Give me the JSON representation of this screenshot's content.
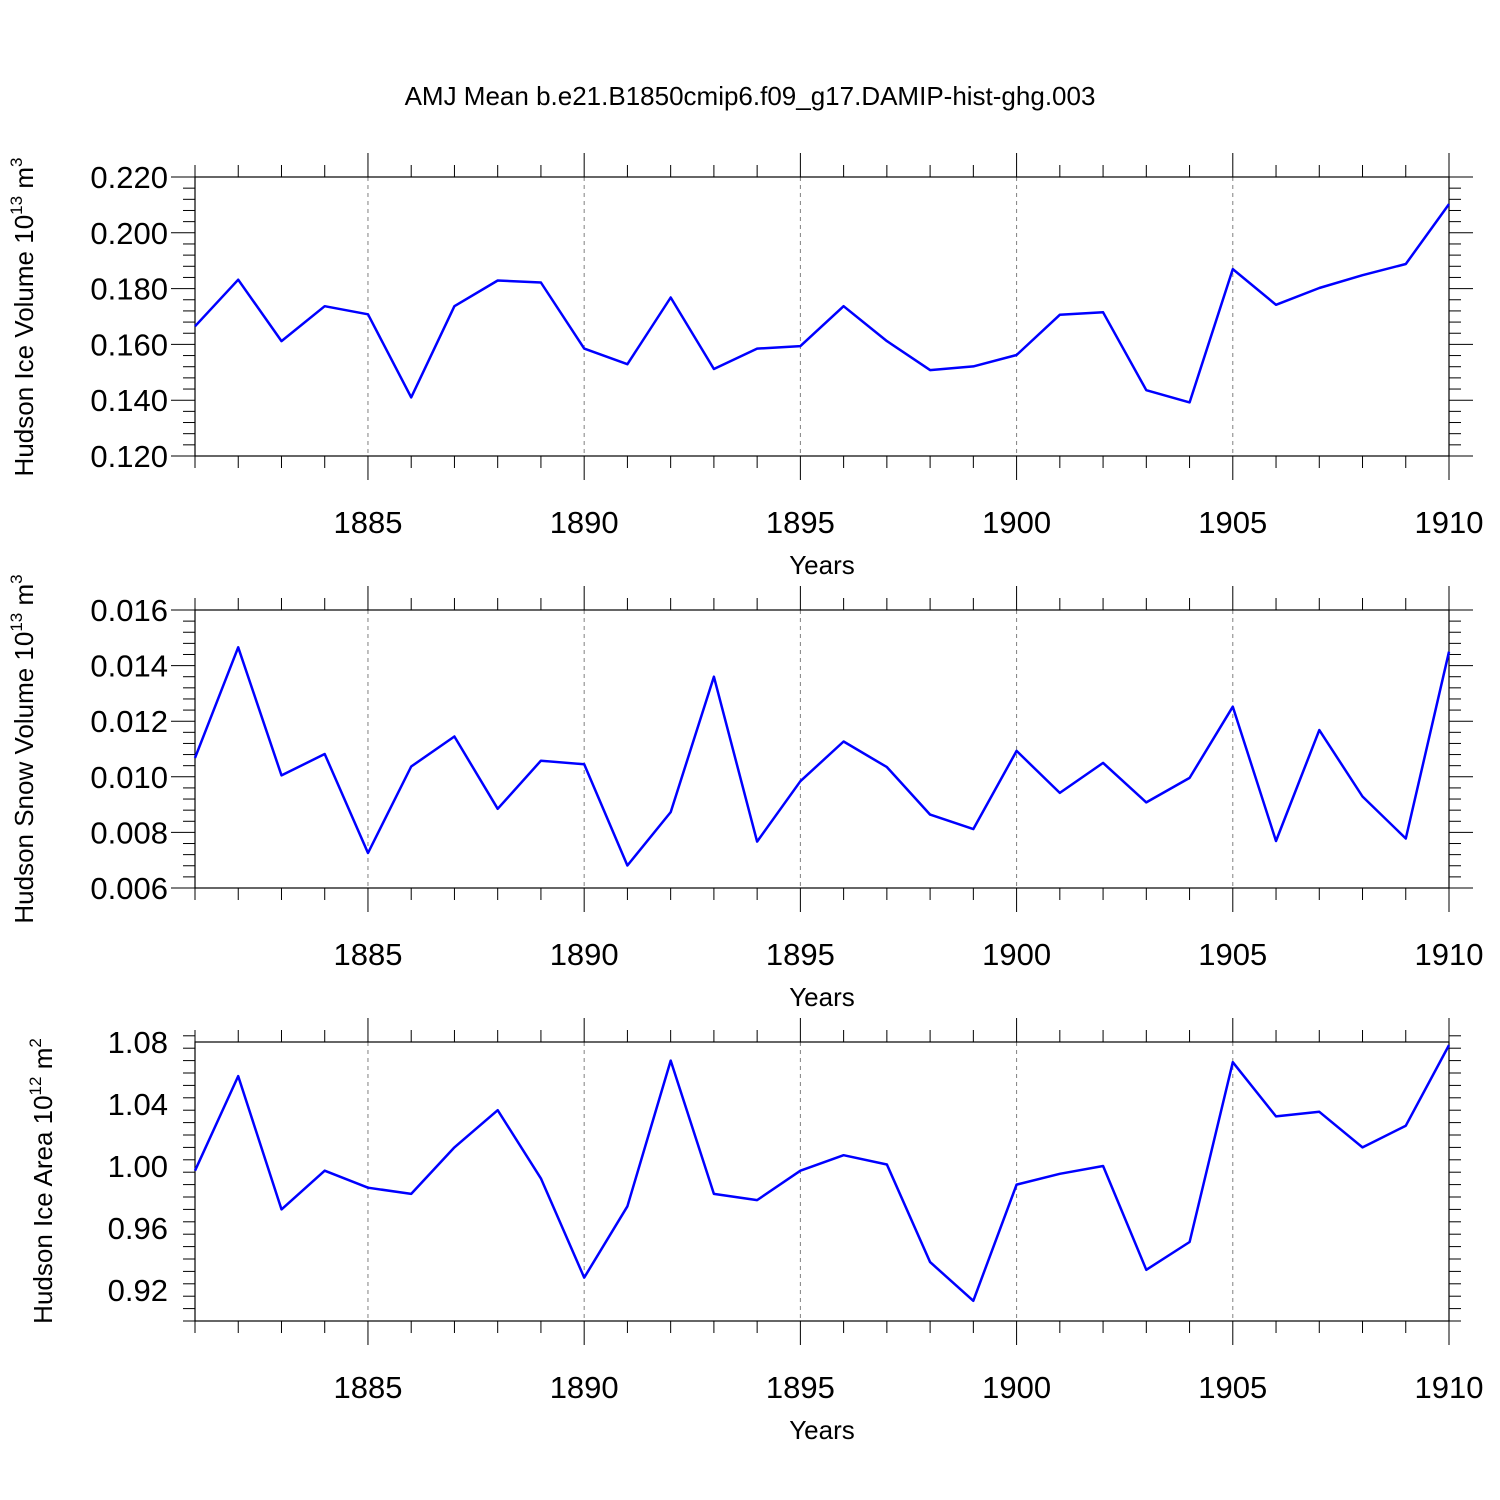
{
  "title": "AMJ Mean b.e21.B1850cmip6.f09_g17.DAMIP-hist-ghg.003",
  "chart_data": [
    {
      "type": "line",
      "ylabel": "Hudson Ice Volume",
      "yunit_base": "10",
      "yunit_exp": "13",
      "yunit_rest": " m",
      "yunit_sup": "3",
      "xlabel": "Years",
      "xlim": [
        1881,
        1910
      ],
      "ylim": [
        0.12,
        0.22
      ],
      "xticks": [
        "1885",
        "1890",
        "1895",
        "1900",
        "1905",
        "1910"
      ],
      "yticks": [
        "0.120",
        "0.140",
        "0.160",
        "0.180",
        "0.200",
        "0.220"
      ],
      "x": [
        1881,
        1882,
        1883,
        1884,
        1885,
        1886,
        1887,
        1888,
        1889,
        1890,
        1891,
        1892,
        1893,
        1894,
        1895,
        1896,
        1897,
        1898,
        1899,
        1900,
        1901,
        1902,
        1903,
        1904,
        1905,
        1906,
        1907,
        1908,
        1909,
        1910
      ],
      "series": [
        {
          "values": [
            0.1665,
            0.1832,
            0.1612,
            0.1737,
            0.1708,
            0.141,
            0.1737,
            0.1829,
            0.1822,
            0.1585,
            0.1529,
            0.1768,
            0.1512,
            0.1585,
            0.1594,
            0.1737,
            0.1612,
            0.1508,
            0.1521,
            0.1562,
            0.1706,
            0.1715,
            0.1436,
            0.1392,
            0.187,
            0.1742,
            0.1802,
            0.1848,
            0.1888,
            0.2103
          ],
          "color": "#0000ff"
        }
      ],
      "grid": "x-dashed"
    },
    {
      "type": "line",
      "ylabel": "Hudson Snow Volume",
      "yunit_base": "10",
      "yunit_exp": "13",
      "yunit_rest": " m",
      "yunit_sup": "3",
      "xlabel": "Years",
      "xlim": [
        1881,
        1910
      ],
      "ylim": [
        0.006,
        0.016
      ],
      "xticks": [
        "1885",
        "1890",
        "1895",
        "1900",
        "1905",
        "1910"
      ],
      "yticks": [
        "0.006",
        "0.008",
        "0.010",
        "0.012",
        "0.014",
        "0.016"
      ],
      "x": [
        1881,
        1882,
        1883,
        1884,
        1885,
        1886,
        1887,
        1888,
        1889,
        1890,
        1891,
        1892,
        1893,
        1894,
        1895,
        1896,
        1897,
        1898,
        1899,
        1900,
        1901,
        1902,
        1903,
        1904,
        1905,
        1906,
        1907,
        1908,
        1909,
        1910
      ],
      "series": [
        {
          "values": [
            0.01068,
            0.01466,
            0.01005,
            0.01082,
            0.00726,
            0.01037,
            0.01145,
            0.00885,
            0.01058,
            0.01045,
            0.00681,
            0.00873,
            0.0136,
            0.00767,
            0.00984,
            0.01127,
            0.01035,
            0.00864,
            0.00812,
            0.01093,
            0.00942,
            0.0105,
            0.00908,
            0.00996,
            0.01252,
            0.00769,
            0.01168,
            0.00929,
            0.00778,
            0.0145
          ],
          "color": "#0000ff"
        }
      ],
      "grid": "x-dashed"
    },
    {
      "type": "line",
      "ylabel": "Hudson Ice Area",
      "yunit_base": "10",
      "yunit_exp": "12",
      "yunit_rest": " m",
      "yunit_sup": "2",
      "xlabel": "Years",
      "xlim": [
        1881,
        1910
      ],
      "ylim": [
        0.9,
        1.08
      ],
      "xticks": [
        "1885",
        "1890",
        "1895",
        "1900",
        "1905",
        "1910"
      ],
      "yticks": [
        "0.92",
        "0.96",
        "1.00",
        "1.04",
        "1.08"
      ],
      "x": [
        1881,
        1882,
        1883,
        1884,
        1885,
        1886,
        1887,
        1888,
        1889,
        1890,
        1891,
        1892,
        1893,
        1894,
        1895,
        1896,
        1897,
        1898,
        1899,
        1900,
        1901,
        1902,
        1903,
        1904,
        1905,
        1906,
        1907,
        1908,
        1909,
        1910
      ],
      "series": [
        {
          "values": [
            0.997,
            1.058,
            0.972,
            0.997,
            0.986,
            0.982,
            1.012,
            1.036,
            0.992,
            0.928,
            0.974,
            1.068,
            0.982,
            0.978,
            0.997,
            1.007,
            1.001,
            0.938,
            0.913,
            0.988,
            0.995,
            1.0,
            0.933,
            0.951,
            1.067,
            1.032,
            1.035,
            1.012,
            1.026,
            1.078
          ],
          "color": "#0000ff"
        }
      ],
      "grid": "x-dashed"
    }
  ]
}
